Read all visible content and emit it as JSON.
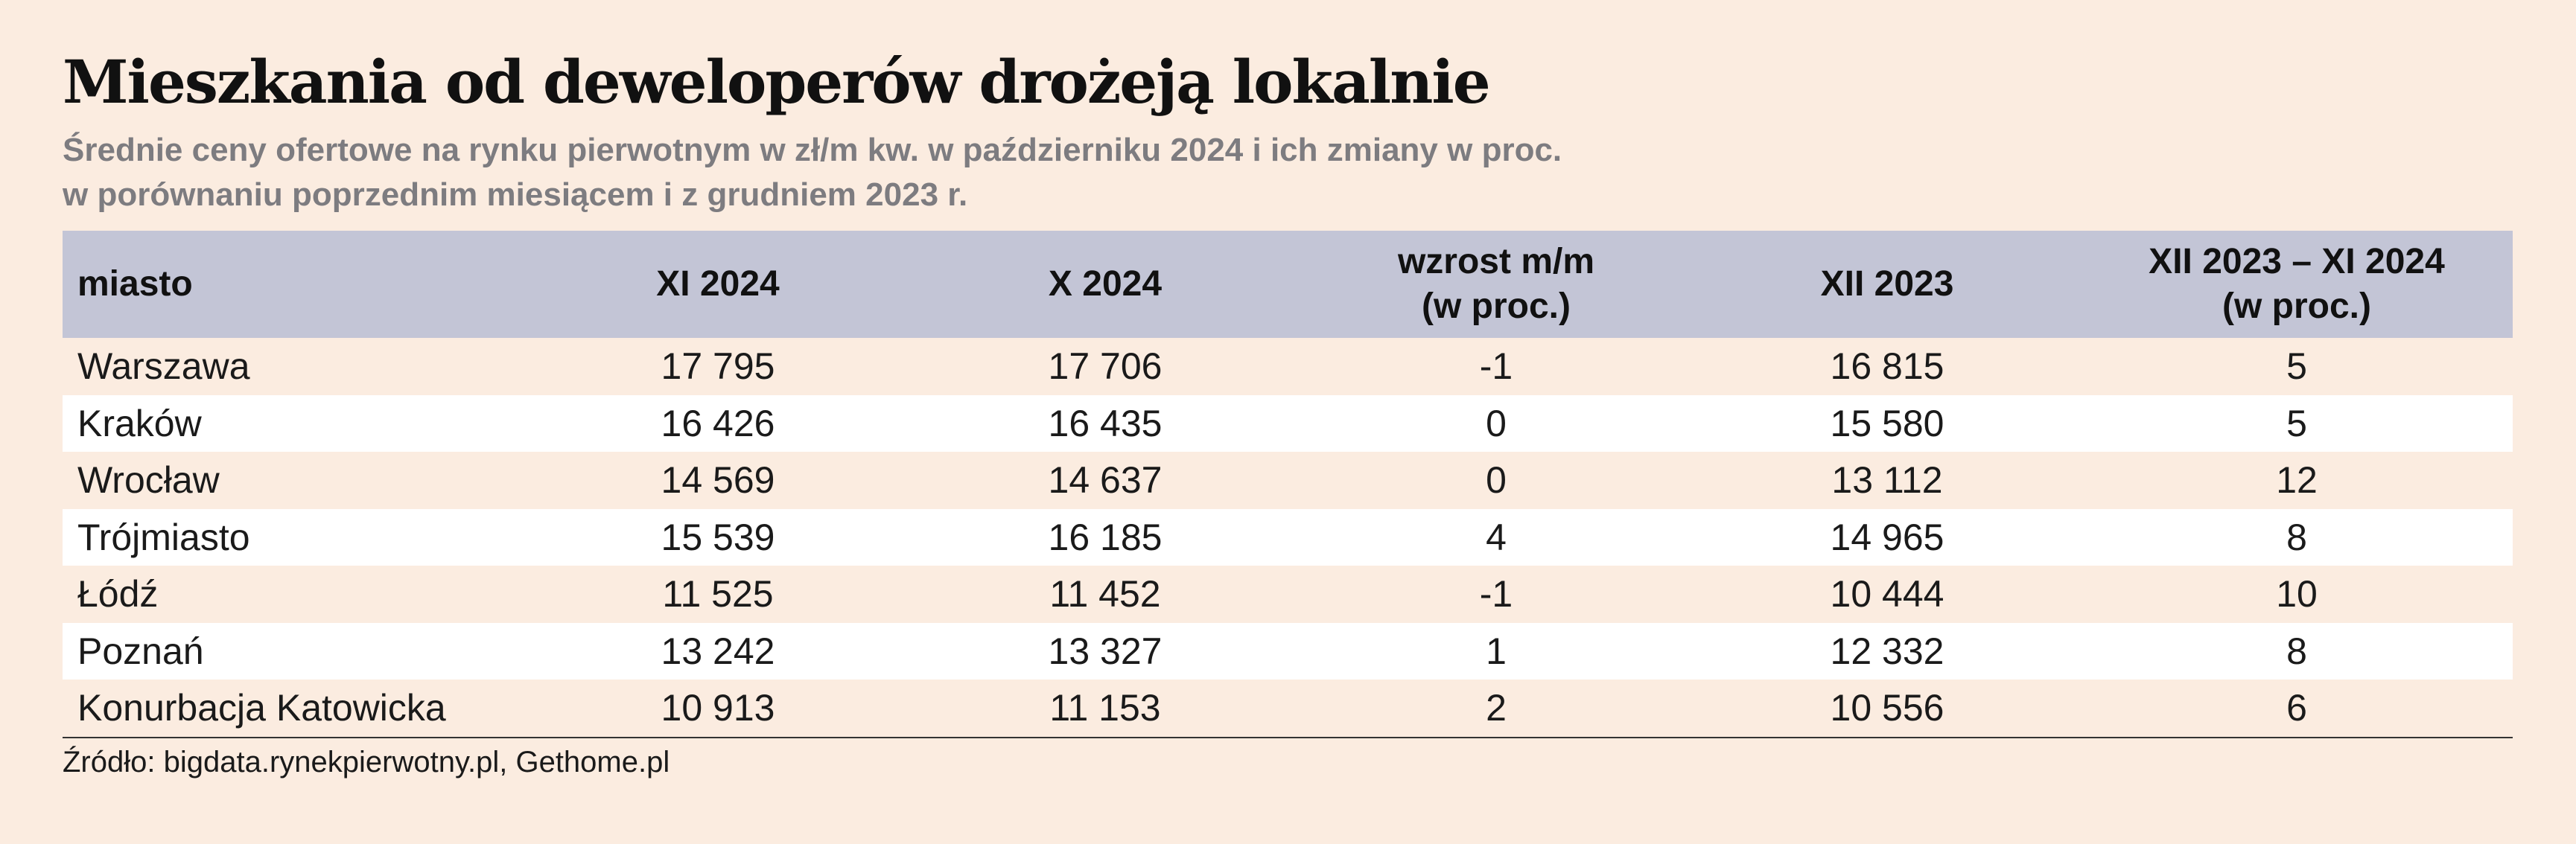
{
  "title": "Mieszkania od deweloperów drożeją lokalnie",
  "subtitle_line1": "Średnie ceny ofertowe na rynku pierwotnym w zł/m kw. w październiku 2024 i ich zmiany w proc.",
  "subtitle_line2": "w porównaniu poprzednim miesiącem i z grudniem 2023 r.",
  "table": {
    "headers": [
      [
        "miasto"
      ],
      [
        "XI 2024"
      ],
      [
        "X 2024"
      ],
      [
        "wzrost m/m",
        "(w proc.)"
      ],
      [
        "XII 2023"
      ],
      [
        "XII 2023 – XI 2024",
        "(w proc.)"
      ]
    ],
    "rows": [
      [
        "Warszawa",
        "17 795",
        "17 706",
        "-1",
        "16 815",
        "5"
      ],
      [
        "Kraków",
        "16 426",
        "16 435",
        "0",
        "15 580",
        "5"
      ],
      [
        "Wrocław",
        "14 569",
        "14 637",
        "0",
        "13 112",
        "12"
      ],
      [
        "Trójmiasto",
        "15 539",
        "16 185",
        "4",
        "14 965",
        "8"
      ],
      [
        "Łódź",
        "11 525",
        "11 452",
        "-1",
        "10 444",
        "10"
      ],
      [
        "Poznań",
        "13 242",
        "13 327",
        "1",
        "12 332",
        "8"
      ],
      [
        "Konurbacja Katowicka",
        "10 913",
        "11 153",
        "2",
        "10 556",
        "6"
      ]
    ]
  },
  "source": "Źródło: bigdata.rynekpierwotny.pl, Gethome.pl",
  "colors": {
    "background": "#fbece0",
    "header_band": "#c3c5d6",
    "alt_row": "#ffffff",
    "subtitle": "#7d7c80"
  }
}
